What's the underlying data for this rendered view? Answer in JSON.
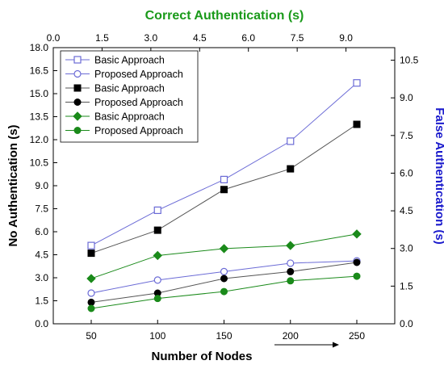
{
  "chart_data": {
    "type": "line",
    "x_values": [
      50,
      100,
      150,
      200,
      250
    ],
    "axes": {
      "bottom": {
        "label": "Number of Nodes",
        "ticks": [
          "50",
          "100",
          "150",
          "200",
          "250"
        ]
      },
      "top": {
        "label": "Correct Authentication (s)",
        "range": [
          0,
          10.5
        ],
        "ticks": [
          "0.0",
          "1.5",
          "3.0",
          "4.5",
          "6.0",
          "7.5",
          "9.0"
        ]
      },
      "left": {
        "label": "No Authentication (s)",
        "range": [
          0,
          18
        ],
        "ticks": [
          "0.0",
          "1.5",
          "3.0",
          "4.5",
          "6.0",
          "7.5",
          "9.0",
          "10.5",
          "12.0",
          "13.5",
          "15.0",
          "16.5",
          "18.0"
        ]
      },
      "right": {
        "label": "False Authentication (s)",
        "range": [
          0,
          11
        ],
        "ticks": [
          "0.0",
          "1.5",
          "3.0",
          "4.5",
          "6.0",
          "7.5",
          "9.0",
          "10.5"
        ]
      }
    },
    "series": [
      {
        "name": "Basic Approach",
        "axis": "left",
        "marker": "square-open",
        "color": "#6b6bd6",
        "values": [
          5.1,
          7.4,
          9.4,
          11.9,
          15.7
        ]
      },
      {
        "name": "Proposed Approach",
        "axis": "left",
        "marker": "circle-open",
        "color": "#6b6bd6",
        "values": [
          2.0,
          2.85,
          3.4,
          3.95,
          4.1
        ]
      },
      {
        "name": "Basic Approach",
        "axis": "left",
        "marker": "square-filled",
        "color": "#555555",
        "values": [
          4.6,
          6.1,
          8.75,
          10.1,
          13.0
        ]
      },
      {
        "name": "Proposed Approach",
        "axis": "left",
        "marker": "circle-filled",
        "color": "#555555",
        "values": [
          1.4,
          2.0,
          2.95,
          3.4,
          4.0
        ]
      },
      {
        "name": "Basic Approach",
        "axis": "left",
        "marker": "diamond-filled",
        "color": "#1a8a1a",
        "values": [
          2.95,
          4.45,
          4.9,
          5.1,
          5.85
        ]
      },
      {
        "name": "Proposed Approach",
        "axis": "left",
        "marker": "circle-filled",
        "color": "#1a8a1a",
        "values": [
          1.0,
          1.65,
          2.1,
          2.8,
          3.1
        ]
      }
    ],
    "legend_position": "top-left",
    "colors": {
      "top_title": "#1a9a1a",
      "right_title": "#1a1acc",
      "frame": "#000000"
    }
  }
}
